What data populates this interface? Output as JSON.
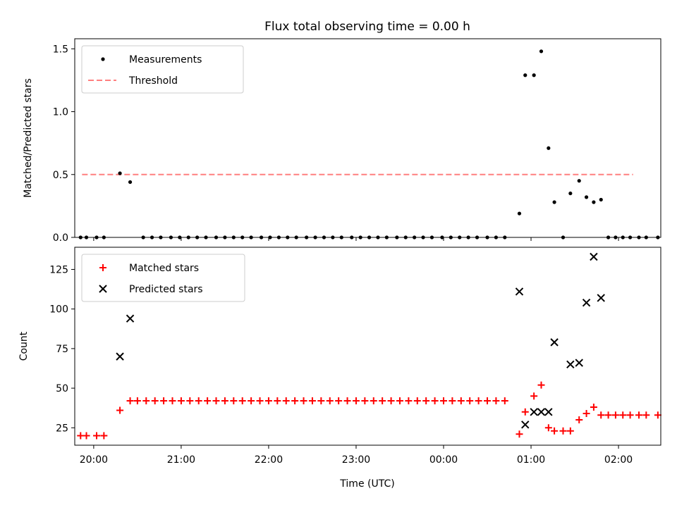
{
  "figure": {
    "title": "Flux total observing time = 0.00 h",
    "xlabel": "Time (UTC)"
  },
  "chart_data": [
    {
      "type": "scatter",
      "ylabel": "Matched/Predicted stars",
      "ylim": [
        0,
        1.58
      ],
      "xlim": [
        "19:47",
        "02:29"
      ],
      "yticks": [
        {
          "value": 0.0,
          "label": "0.0"
        },
        {
          "value": 0.5,
          "label": "0.5"
        },
        {
          "value": 1.0,
          "label": "1.0"
        },
        {
          "value": 1.5,
          "label": "1.5"
        }
      ],
      "legend": {
        "position": "top-left",
        "entries": [
          "Measurements",
          "Threshold"
        ]
      },
      "threshold": {
        "name": "Threshold",
        "value": 0.5,
        "x_start": "19:52",
        "x_end": "02:10",
        "color": "#ff7f7f",
        "style": "dashed"
      },
      "series": [
        {
          "name": "Measurements",
          "color": "#000000",
          "marker": "dot",
          "points": [
            [
              "19:51",
              0
            ],
            [
              "19:55",
              0
            ],
            [
              "20:02",
              0
            ],
            [
              "20:07",
              0
            ],
            [
              "20:18",
              0.51
            ],
            [
              "20:25",
              0.44
            ],
            [
              "20:34",
              0
            ],
            [
              "20:40",
              0
            ],
            [
              "20:46",
              0
            ],
            [
              "20:53",
              0
            ],
            [
              "20:59",
              0
            ],
            [
              "21:05",
              0
            ],
            [
              "21:11",
              0
            ],
            [
              "21:17",
              0
            ],
            [
              "21:24",
              0
            ],
            [
              "21:30",
              0
            ],
            [
              "21:36",
              0
            ],
            [
              "21:42",
              0
            ],
            [
              "21:48",
              0
            ],
            [
              "21:55",
              0
            ],
            [
              "22:01",
              0
            ],
            [
              "22:07",
              0
            ],
            [
              "22:13",
              0
            ],
            [
              "22:19",
              0
            ],
            [
              "22:26",
              0
            ],
            [
              "22:32",
              0
            ],
            [
              "22:38",
              0
            ],
            [
              "22:44",
              0
            ],
            [
              "22:50",
              0
            ],
            [
              "22:57",
              0
            ],
            [
              "23:03",
              0
            ],
            [
              "23:09",
              0
            ],
            [
              "23:15",
              0
            ],
            [
              "23:21",
              0
            ],
            [
              "23:28",
              0
            ],
            [
              "23:34",
              0
            ],
            [
              "23:40",
              0
            ],
            [
              "23:46",
              0
            ],
            [
              "23:52",
              0
            ],
            [
              "23:59",
              0
            ],
            [
              "00:05",
              0
            ],
            [
              "00:11",
              0
            ],
            [
              "00:17",
              0
            ],
            [
              "00:23",
              0
            ],
            [
              "00:30",
              0
            ],
            [
              "00:36",
              0
            ],
            [
              "00:42",
              0
            ],
            [
              "00:52",
              0.19
            ],
            [
              "00:56",
              1.29
            ],
            [
              "01:02",
              1.29
            ],
            [
              "01:07",
              1.48
            ],
            [
              "01:12",
              0.71
            ],
            [
              "01:16",
              0.28
            ],
            [
              "01:22",
              0
            ],
            [
              "01:27",
              0.35
            ],
            [
              "01:33",
              0.45
            ],
            [
              "01:38",
              0.32
            ],
            [
              "01:43",
              0.28
            ],
            [
              "01:48",
              0.3
            ],
            [
              "01:53",
              0
            ],
            [
              "01:58",
              0
            ],
            [
              "02:03",
              0
            ],
            [
              "02:08",
              0
            ],
            [
              "02:14",
              0
            ],
            [
              "02:19",
              0
            ],
            [
              "02:27",
              0
            ]
          ]
        }
      ]
    },
    {
      "type": "scatter",
      "ylabel": "Count",
      "ylim": [
        14,
        139
      ],
      "xlim": [
        "19:47",
        "02:29"
      ],
      "yticks": [
        {
          "value": 25,
          "label": "25"
        },
        {
          "value": 50,
          "label": "50"
        },
        {
          "value": 75,
          "label": "75"
        },
        {
          "value": 100,
          "label": "100"
        },
        {
          "value": 125,
          "label": "125"
        }
      ],
      "xticks": [
        {
          "value": "20:00",
          "label": "20:00"
        },
        {
          "value": "21:00",
          "label": "21:00"
        },
        {
          "value": "22:00",
          "label": "22:00"
        },
        {
          "value": "23:00",
          "label": "23:00"
        },
        {
          "value": "00:00",
          "label": "00:00"
        },
        {
          "value": "01:00",
          "label": "01:00"
        },
        {
          "value": "02:00",
          "label": "02:00"
        }
      ],
      "legend": {
        "position": "top-left",
        "entries": [
          "Matched stars",
          "Predicted stars"
        ]
      },
      "series": [
        {
          "name": "Matched stars",
          "color": "#ff0000",
          "marker": "plus",
          "points": [
            [
              "19:51",
              20
            ],
            [
              "19:55",
              20
            ],
            [
              "20:02",
              20
            ],
            [
              "20:07",
              20
            ],
            [
              "20:18",
              36
            ],
            [
              "20:25",
              42
            ],
            [
              "20:30",
              42
            ],
            [
              "20:36",
              42
            ],
            [
              "20:42",
              42
            ],
            [
              "20:48",
              42
            ],
            [
              "20:54",
              42
            ],
            [
              "21:00",
              42
            ],
            [
              "21:06",
              42
            ],
            [
              "21:12",
              42
            ],
            [
              "21:18",
              42
            ],
            [
              "21:24",
              42
            ],
            [
              "21:30",
              42
            ],
            [
              "21:36",
              42
            ],
            [
              "21:42",
              42
            ],
            [
              "21:48",
              42
            ],
            [
              "21:54",
              42
            ],
            [
              "22:00",
              42
            ],
            [
              "22:06",
              42
            ],
            [
              "22:12",
              42
            ],
            [
              "22:18",
              42
            ],
            [
              "22:24",
              42
            ],
            [
              "22:30",
              42
            ],
            [
              "22:36",
              42
            ],
            [
              "22:42",
              42
            ],
            [
              "22:48",
              42
            ],
            [
              "22:54",
              42
            ],
            [
              "23:00",
              42
            ],
            [
              "23:06",
              42
            ],
            [
              "23:12",
              42
            ],
            [
              "23:18",
              42
            ],
            [
              "23:24",
              42
            ],
            [
              "23:30",
              42
            ],
            [
              "23:36",
              42
            ],
            [
              "23:42",
              42
            ],
            [
              "23:48",
              42
            ],
            [
              "23:54",
              42
            ],
            [
              "00:00",
              42
            ],
            [
              "00:06",
              42
            ],
            [
              "00:12",
              42
            ],
            [
              "00:18",
              42
            ],
            [
              "00:24",
              42
            ],
            [
              "00:30",
              42
            ],
            [
              "00:36",
              42
            ],
            [
              "00:42",
              42
            ],
            [
              "00:52",
              21
            ],
            [
              "00:56",
              35
            ],
            [
              "01:02",
              45
            ],
            [
              "01:07",
              52
            ],
            [
              "01:12",
              25
            ],
            [
              "01:16",
              23
            ],
            [
              "01:22",
              23
            ],
            [
              "01:27",
              23
            ],
            [
              "01:33",
              30
            ],
            [
              "01:38",
              34
            ],
            [
              "01:43",
              38
            ],
            [
              "01:48",
              33
            ],
            [
              "01:53",
              33
            ],
            [
              "01:58",
              33
            ],
            [
              "02:03",
              33
            ],
            [
              "02:08",
              33
            ],
            [
              "02:14",
              33
            ],
            [
              "02:19",
              33
            ],
            [
              "02:27",
              33
            ]
          ]
        },
        {
          "name": "Predicted stars",
          "color": "#000000",
          "marker": "x",
          "points": [
            [
              "20:18",
              70
            ],
            [
              "20:25",
              94
            ],
            [
              "00:52",
              111
            ],
            [
              "00:56",
              27
            ],
            [
              "01:02",
              35
            ],
            [
              "01:07",
              35
            ],
            [
              "01:12",
              35
            ],
            [
              "01:16",
              79
            ],
            [
              "01:27",
              65
            ],
            [
              "01:33",
              66
            ],
            [
              "01:38",
              104
            ],
            [
              "01:43",
              133
            ],
            [
              "01:48",
              107
            ]
          ]
        }
      ]
    }
  ]
}
